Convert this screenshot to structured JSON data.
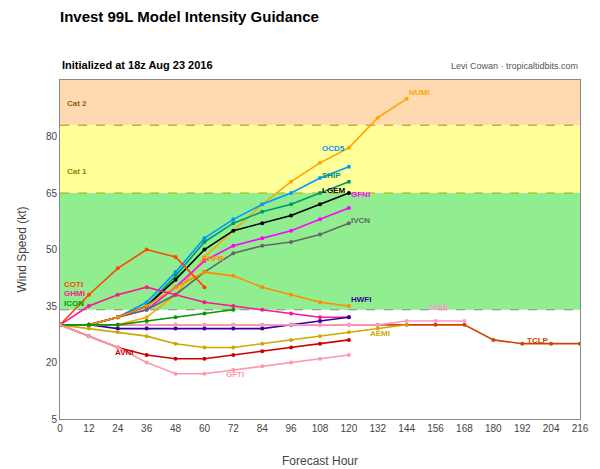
{
  "chart_data": {
    "type": "line",
    "title": "Invest 99L Model Intensity Guidance",
    "subtitle": "Initialized at 18z Aug 23 2016",
    "credit": "Levi Cowan · tropicaltidbits.com",
    "xlabel": "Forecast Hour",
    "ylabel": "Wind Speed (kt)",
    "xlim": [
      0,
      216
    ],
    "ylim": [
      5,
      95
    ],
    "xticks": [
      0,
      12,
      24,
      36,
      48,
      60,
      72,
      84,
      96,
      108,
      120,
      132,
      144,
      156,
      168,
      180,
      192,
      204,
      216
    ],
    "yticks": [
      5,
      20,
      35,
      50,
      65,
      80
    ],
    "grid": false,
    "marker": "circle",
    "bands": [
      {
        "from": 83,
        "to": 100,
        "color": "#FFD9B0"
      },
      {
        "from": 65,
        "to": 83,
        "color": "#FFFF99"
      },
      {
        "from": 34,
        "to": 65,
        "color": "#90EE90"
      }
    ],
    "thresholds": [
      {
        "value": 83,
        "color": "#B8860B",
        "line_style": "dashed"
      },
      {
        "value": 65,
        "color": "#AAAA00",
        "line_style": "dashed"
      },
      {
        "value": 34,
        "color": "#888888",
        "line_style": "dashed"
      }
    ],
    "series": [
      {
        "name": "NUMI",
        "color": "#FFA500",
        "x": [
          0,
          12,
          24,
          36,
          48,
          60,
          72,
          84,
          96,
          108,
          120,
          132,
          144
        ],
        "values": [
          30,
          30,
          30,
          32,
          38,
          48,
          55,
          62,
          68,
          73,
          77,
          85,
          90
        ]
      },
      {
        "name": "OCD5",
        "color": "#0099FF",
        "x": [
          0,
          12,
          24,
          36,
          48,
          60,
          72,
          84,
          96,
          108,
          120
        ],
        "values": [
          30,
          30,
          32,
          36,
          44,
          53,
          58,
          62,
          65,
          69,
          72
        ]
      },
      {
        "name": "SHIP",
        "color": "#009966",
        "x": [
          0,
          12,
          24,
          36,
          48,
          60,
          72,
          84,
          96,
          108,
          120
        ],
        "values": [
          30,
          30,
          32,
          35,
          43,
          52,
          57,
          60,
          62,
          65,
          68
        ]
      },
      {
        "name": "LGEM",
        "color": "#000000",
        "x": [
          0,
          12,
          24,
          36,
          48,
          60,
          72,
          84,
          96,
          108,
          120
        ],
        "values": [
          30,
          30,
          32,
          35,
          42,
          50,
          55,
          57,
          59,
          62,
          65
        ]
      },
      {
        "name": "GFNI",
        "color": "#FF00FF",
        "x": [
          0,
          12,
          24,
          36,
          48,
          60,
          72,
          84,
          96,
          108,
          120
        ],
        "values": [
          30,
          30,
          32,
          34,
          40,
          47,
          51,
          53,
          55,
          58,
          61
        ]
      },
      {
        "name": "IVCN",
        "color": "#666666",
        "x": [
          0,
          12,
          24,
          36,
          48,
          60,
          72,
          84,
          96,
          108,
          120
        ],
        "values": [
          30,
          30,
          32,
          34,
          38,
          44,
          49,
          51,
          52,
          54,
          57
        ]
      },
      {
        "name": "SHFR",
        "color": "#FF8C00",
        "x": [
          0,
          12,
          24,
          36,
          48,
          60,
          72,
          84,
          96,
          108,
          120
        ],
        "values": [
          30,
          30,
          32,
          35,
          40,
          44,
          43,
          40,
          38,
          36,
          35
        ]
      },
      {
        "name": "COTI",
        "color": "#FF4500",
        "x": [
          0,
          12,
          24,
          36,
          48,
          60
        ],
        "values": [
          30,
          38,
          45,
          50,
          48,
          40
        ]
      },
      {
        "name": "GHMI",
        "color": "#FF1493",
        "x": [
          0,
          12,
          24,
          36,
          48,
          60,
          72,
          84,
          96,
          108,
          120
        ],
        "values": [
          30,
          35,
          38,
          40,
          38,
          36,
          35,
          34,
          33,
          32,
          32
        ]
      },
      {
        "name": "TCLP",
        "color": "#CC4400",
        "x": [
          0,
          12,
          24,
          36,
          48,
          60,
          72,
          84,
          96,
          108,
          120,
          132,
          144,
          156,
          168,
          180,
          192,
          204,
          216
        ],
        "values": [
          30,
          30,
          30,
          30,
          30,
          30,
          30,
          30,
          30,
          30,
          30,
          30,
          30,
          30,
          30,
          26,
          25,
          25,
          25
        ]
      },
      {
        "name": "HWFI",
        "color": "#330099",
        "x": [
          0,
          12,
          24,
          36,
          48,
          60,
          72,
          84,
          96,
          108,
          120
        ],
        "values": [
          30,
          30,
          29,
          29,
          29,
          29,
          29,
          29,
          30,
          31,
          32
        ]
      },
      {
        "name": "CEMI",
        "color": "#FF99CC",
        "x": [
          0,
          12,
          24,
          36,
          48,
          60,
          72,
          84,
          96,
          108,
          120,
          132,
          144,
          156,
          168
        ],
        "values": [
          30,
          30,
          30,
          30,
          30,
          30,
          30,
          30,
          30,
          30,
          30,
          30,
          31,
          31,
          31
        ]
      },
      {
        "name": "AEMI",
        "color": "#CCAA00",
        "x": [
          0,
          12,
          24,
          36,
          48,
          60,
          72,
          84,
          96,
          108,
          120,
          132,
          144
        ],
        "values": [
          30,
          29,
          28,
          27,
          25,
          24,
          24,
          25,
          26,
          27,
          28,
          29,
          30
        ]
      },
      {
        "name": "AVNI",
        "color": "#CC0000",
        "x": [
          0,
          12,
          24,
          36,
          48,
          60,
          72,
          84,
          96,
          108,
          120
        ],
        "values": [
          30,
          27,
          24,
          22,
          21,
          21,
          22,
          23,
          24,
          25,
          26
        ]
      },
      {
        "name": "ICON",
        "color": "#009900",
        "x": [
          0,
          12,
          24,
          36,
          48,
          60,
          72
        ],
        "values": [
          30,
          30,
          30,
          31,
          32,
          33,
          34
        ]
      },
      {
        "name": "GFTI",
        "color": "#FF99AA",
        "x": [
          0,
          12,
          24,
          36,
          48,
          60,
          72,
          84,
          96,
          108,
          120
        ],
        "values": [
          30,
          27,
          24,
          20,
          17,
          17,
          18,
          19,
          20,
          21,
          22
        ]
      }
    ],
    "annotations": [
      {
        "text": "Cat 2",
        "x": 2,
        "y": 87,
        "color": "#8B6500"
      },
      {
        "text": "Cat 1",
        "x": 2,
        "y": 69,
        "color": "#888800"
      },
      {
        "text": "NUMI",
        "x": 144,
        "y": 90,
        "color": "#FFA500"
      },
      {
        "text": "OCD5",
        "x": 108,
        "y": 75,
        "color": "#0099FF"
      },
      {
        "text": "SHIP",
        "x": 108,
        "y": 68,
        "color": "#009966"
      },
      {
        "text": "LGEM",
        "x": 108,
        "y": 64,
        "color": "#000000"
      },
      {
        "text": "GFNI",
        "x": 120,
        "y": 63,
        "color": "#FF00FF"
      },
      {
        "text": "IVCN",
        "x": 120,
        "y": 56,
        "color": "#666666"
      },
      {
        "text": "SHFR",
        "x": 58,
        "y": 46,
        "color": "#FF8C00"
      },
      {
        "text": "COTI",
        "x": 1,
        "y": 39,
        "color": "#FF4500"
      },
      {
        "text": "GHMI",
        "x": 1,
        "y": 36.5,
        "color": "#FF1493"
      },
      {
        "text": "ICON",
        "x": 1,
        "y": 34,
        "color": "#009900"
      },
      {
        "text": "TCLP",
        "x": 193,
        "y": 24,
        "color": "#CC4400"
      },
      {
        "text": "HWFI",
        "x": 120,
        "y": 35,
        "color": "#330099"
      },
      {
        "text": "CEMI",
        "x": 152,
        "y": 33,
        "color": "#FF99CC"
      },
      {
        "text": "AEMI",
        "x": 128,
        "y": 26,
        "color": "#CCAA00"
      },
      {
        "text": "AVNI",
        "x": 22,
        "y": 21,
        "color": "#CC0000"
      },
      {
        "text": "GFTI",
        "x": 68,
        "y": 15,
        "color": "#FF99AA"
      }
    ]
  }
}
